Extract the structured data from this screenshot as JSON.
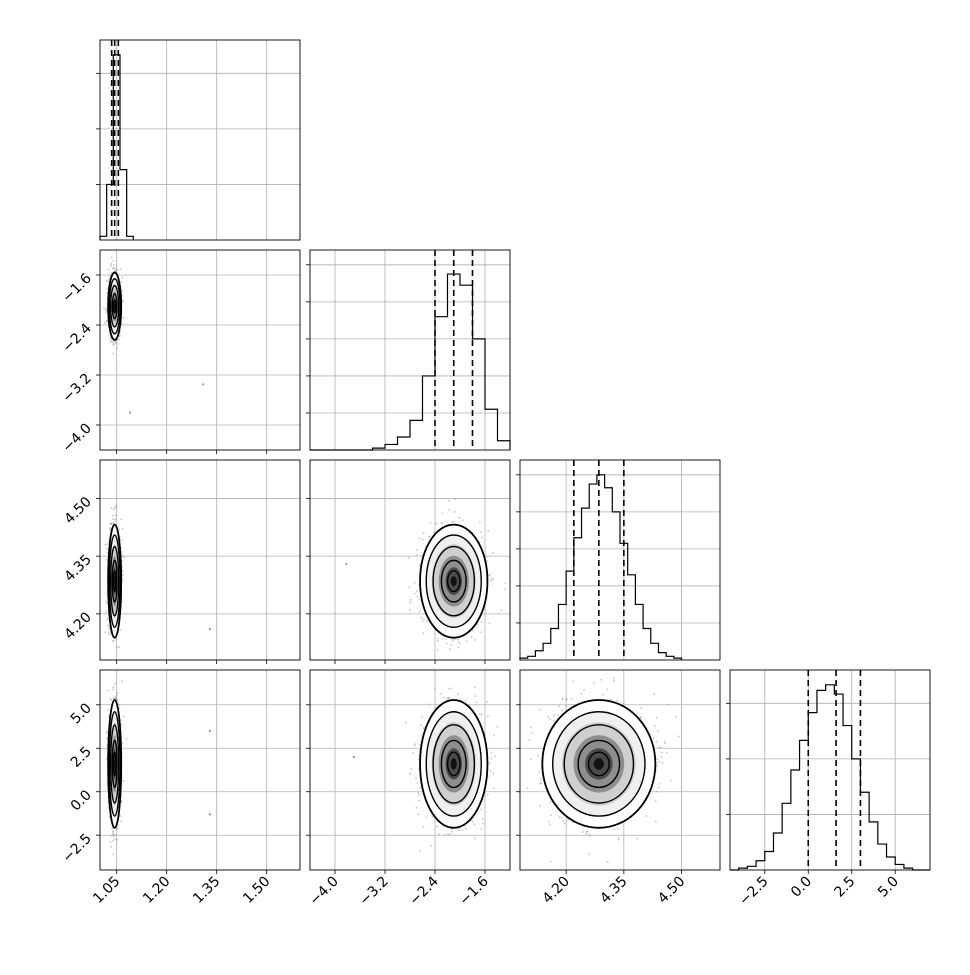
{
  "figure": {
    "type": "corner-plot",
    "grid": true,
    "quantile_lines": "dashed",
    "colors": {
      "background": "#ffffff",
      "line": "#000000",
      "grid": "#b0b0b0",
      "scatter": "#9a9a9a"
    }
  },
  "chart_data": [
    {
      "type": "histogram",
      "panel": "p1-hist",
      "xlim": [
        1.0,
        1.6
      ],
      "bin_edges": [
        1.0,
        1.02,
        1.04,
        1.06,
        1.08,
        1.1
      ],
      "counts": [
        0.02,
        0.3,
        1.0,
        0.38,
        0.02
      ],
      "quantiles": [
        1.035,
        1.044,
        1.055
      ]
    },
    {
      "type": "histogram",
      "panel": "p2-hist",
      "xlim": [
        -4.4,
        -1.2
      ],
      "bin_edges": [
        -4.4,
        -4.2,
        -4.0,
        -3.8,
        -3.6,
        -3.4,
        -3.2,
        -3.0,
        -2.8,
        -2.6,
        -2.4,
        -2.2,
        -2.0,
        -1.8,
        -1.6,
        -1.4,
        -1.2
      ],
      "counts": [
        0.0,
        0.0,
        0.0,
        0.0,
        0.0,
        0.01,
        0.03,
        0.07,
        0.16,
        0.4,
        0.72,
        0.95,
        0.89,
        0.6,
        0.22,
        0.05
      ],
      "quantiles": [
        -2.4,
        -2.1,
        -1.8
      ]
    },
    {
      "type": "histogram",
      "panel": "p3-hist",
      "xlim": [
        4.08,
        4.6
      ],
      "bin_edges": [
        4.08,
        4.1,
        4.12,
        4.14,
        4.16,
        4.18,
        4.2,
        4.22,
        4.24,
        4.26,
        4.28,
        4.3,
        4.32,
        4.34,
        4.36,
        4.38,
        4.4,
        4.42,
        4.44,
        4.46,
        4.48,
        4.5
      ],
      "counts": [
        0.01,
        0.02,
        0.05,
        0.09,
        0.17,
        0.3,
        0.48,
        0.66,
        0.82,
        0.95,
        1.0,
        0.93,
        0.8,
        0.63,
        0.46,
        0.3,
        0.17,
        0.09,
        0.04,
        0.02,
        0.01
      ],
      "quantiles": [
        4.22,
        4.285,
        4.35
      ]
    },
    {
      "type": "histogram",
      "panel": "p4-hist",
      "xlim": [
        -4.5,
        7.0
      ],
      "bin_edges": [
        -4.5,
        -4.0,
        -3.5,
        -3.0,
        -2.5,
        -2.0,
        -1.5,
        -1.0,
        -0.5,
        0.0,
        0.5,
        1.0,
        1.5,
        2.0,
        2.5,
        3.0,
        3.5,
        4.0,
        4.5,
        5.0,
        5.5,
        6.0,
        6.5,
        7.0
      ],
      "counts": [
        0.0,
        0.01,
        0.02,
        0.05,
        0.1,
        0.2,
        0.36,
        0.54,
        0.7,
        0.85,
        0.97,
        1.0,
        0.95,
        0.78,
        0.6,
        0.42,
        0.26,
        0.14,
        0.07,
        0.03,
        0.01,
        0.0,
        0.0
      ],
      "quantiles": [
        0.0,
        1.6,
        3.0
      ]
    },
    {
      "type": "scatter-density",
      "panel": "p2-vs-p1",
      "xlim": [
        1.0,
        1.6
      ],
      "ylim": [
        -4.4,
        -1.2
      ],
      "center": [
        1.044,
        -2.1
      ],
      "sigma": [
        0.008,
        0.22
      ],
      "outliers": [
        [
          1.31,
          -3.35
        ],
        [
          1.09,
          -3.8
        ]
      ]
    },
    {
      "type": "scatter-density",
      "panel": "p3-vs-p1",
      "xlim": [
        1.0,
        1.6
      ],
      "ylim": [
        4.08,
        4.6
      ],
      "center": [
        1.044,
        4.285
      ],
      "sigma": [
        0.008,
        0.06
      ],
      "outliers": [
        [
          1.33,
          4.16
        ]
      ]
    },
    {
      "type": "scatter-density",
      "panel": "p4-vs-p1",
      "xlim": [
        1.0,
        1.6
      ],
      "ylim": [
        -4.5,
        7.0
      ],
      "center": [
        1.044,
        1.6
      ],
      "sigma": [
        0.008,
        1.5
      ],
      "outliers": [
        [
          1.33,
          3.5
        ],
        [
          1.33,
          -1.3
        ]
      ]
    },
    {
      "type": "scatter-density",
      "panel": "p3-vs-p2",
      "xlim": [
        -4.4,
        -1.2
      ],
      "ylim": [
        4.08,
        4.6
      ],
      "center": [
        -2.1,
        4.285
      ],
      "sigma": [
        0.22,
        0.06
      ],
      "outliers": [
        [
          -3.82,
          4.33
        ]
      ]
    },
    {
      "type": "scatter-density",
      "panel": "p4-vs-p2",
      "xlim": [
        -4.4,
        -1.2
      ],
      "ylim": [
        -4.5,
        7.0
      ],
      "center": [
        -2.1,
        1.6
      ],
      "sigma": [
        0.22,
        1.5
      ],
      "outliers": [
        [
          -3.7,
          2.0
        ]
      ]
    },
    {
      "type": "scatter-density",
      "panel": "p4-vs-p3",
      "xlim": [
        4.08,
        4.6
      ],
      "ylim": [
        -4.5,
        7.0
      ],
      "center": [
        4.285,
        1.6
      ],
      "sigma": [
        0.06,
        1.5
      ],
      "outliers": []
    }
  ],
  "ticks": {
    "p1_x": [
      "1.05",
      "1.20",
      "1.35",
      "1.50"
    ],
    "p1_x_values": [
      1.05,
      1.2,
      1.35,
      1.5
    ],
    "p2_x": [
      "−4.0",
      "−3.2",
      "−2.4",
      "−1.6"
    ],
    "p2_x_values": [
      -4.0,
      -3.2,
      -2.4,
      -1.6
    ],
    "p3_x": [
      "4.20",
      "4.35",
      "4.50"
    ],
    "p3_x_values": [
      4.2,
      4.35,
      4.5
    ],
    "p4_x": [
      "−2.5",
      "0.0",
      "2.5",
      "5.0"
    ],
    "p4_x_values": [
      -2.5,
      0.0,
      2.5,
      5.0
    ],
    "p2_y": [
      "−1.6",
      "−2.4",
      "−3.2",
      "−4.0"
    ],
    "p2_y_values": [
      -1.6,
      -2.4,
      -3.2,
      -4.0
    ],
    "p3_y": [
      "4.50",
      "4.35",
      "4.20"
    ],
    "p3_y_values": [
      4.5,
      4.35,
      4.2
    ],
    "p4_y": [
      "5.0",
      "2.5",
      "0.0",
      "−2.5"
    ],
    "p4_y_values": [
      5.0,
      2.5,
      0.0,
      -2.5
    ]
  }
}
